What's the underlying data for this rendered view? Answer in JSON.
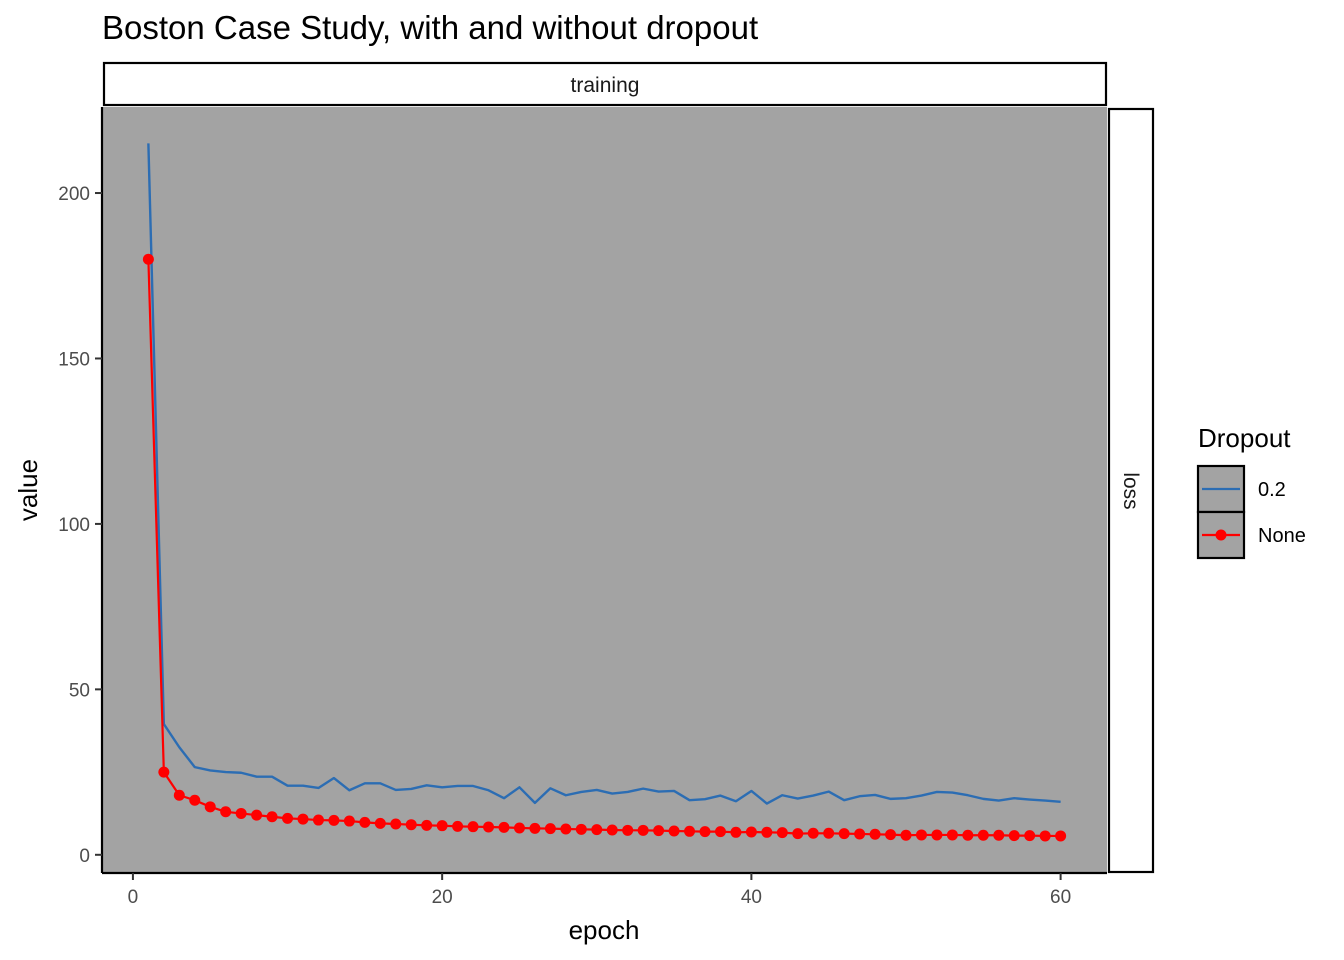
{
  "chart_data": {
    "type": "line",
    "title": "Boston Case Study, with and without dropout",
    "facet_top": "training",
    "facet_right": "loss",
    "xlabel": "epoch",
    "ylabel": "value",
    "xlim": [
      -2,
      63
    ],
    "ylim": [
      -5.5,
      226
    ],
    "x_ticks": [
      0,
      20,
      40,
      60
    ],
    "y_ticks": [
      0,
      50,
      100,
      150,
      200
    ],
    "panel_background": "#a3a3a3",
    "legend": {
      "title": "Dropout",
      "position": "right"
    },
    "x": [
      1,
      2,
      3,
      4,
      5,
      6,
      7,
      8,
      9,
      10,
      11,
      12,
      13,
      14,
      15,
      16,
      17,
      18,
      19,
      20,
      21,
      22,
      23,
      24,
      25,
      26,
      27,
      28,
      29,
      30,
      31,
      32,
      33,
      34,
      35,
      36,
      37,
      38,
      39,
      40,
      41,
      42,
      43,
      44,
      45,
      46,
      47,
      48,
      49,
      50,
      51,
      52,
      53,
      54,
      55,
      56,
      57,
      58,
      59,
      60
    ],
    "series": [
      {
        "name": "0.2",
        "color": "#2c6db3",
        "markers": false,
        "values": [
          215,
          39.5,
          32.5,
          26.5,
          25.5,
          25,
          24.8,
          23.6,
          23.6,
          20.9,
          20.9,
          20.2,
          23.2,
          19.5,
          21.6,
          21.6,
          19.6,
          19.9,
          21,
          20.4,
          20.8,
          20.8,
          19.5,
          17.1,
          20.4,
          15.7,
          20.1,
          18,
          19,
          19.6,
          18.5,
          19,
          20,
          19.1,
          19.3,
          16.5,
          16.8,
          17.9,
          16.2,
          19.3,
          15.5,
          18,
          17,
          17.9,
          19.1,
          16.5,
          17.7,
          18.1,
          16.9,
          17.1,
          17.9,
          19,
          18.8,
          18,
          16.9,
          16.4,
          17.1,
          16.7,
          16.4,
          16
        ]
      },
      {
        "name": "None",
        "color": "#ff0000",
        "markers": true,
        "values": [
          180,
          25,
          18,
          16.5,
          14.5,
          13,
          12.5,
          12,
          11.5,
          11,
          10.8,
          10.5,
          10.4,
          10.2,
          9.8,
          9.5,
          9.3,
          9.1,
          8.9,
          8.8,
          8.6,
          8.5,
          8.4,
          8.3,
          8.1,
          8,
          7.9,
          7.8,
          7.7,
          7.6,
          7.5,
          7.4,
          7.4,
          7.3,
          7.2,
          7.1,
          7,
          7,
          6.8,
          6.9,
          6.8,
          6.7,
          6.4,
          6.5,
          6.5,
          6.4,
          6.3,
          6.2,
          6.1,
          5.9,
          6,
          6,
          6,
          5.9,
          5.9,
          5.9,
          5.8,
          5.8,
          5.7,
          5.7
        ]
      }
    ]
  }
}
